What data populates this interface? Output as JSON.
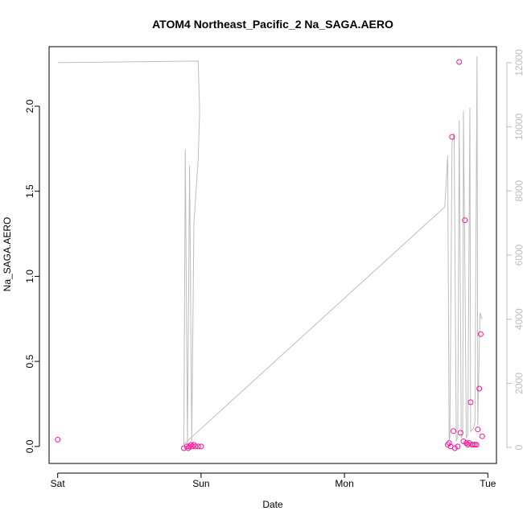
{
  "chart_data": {
    "type": "scatter",
    "title": "ATOM4 Northeast_Pacific_2 Na_SAGA.AERO",
    "xlabel": "Date",
    "ylabel": "Na_SAGA.AERO",
    "x_ticks": [
      {
        "label": "Sat",
        "value": 0
      },
      {
        "label": "Sun",
        "value": 1
      },
      {
        "label": "Mon",
        "value": 2
      },
      {
        "label": "Tue",
        "value": 3
      }
    ],
    "xlim": [
      -0.06,
      3.06
    ],
    "y_ticks": [
      0.0,
      0.5,
      1.0,
      1.5,
      2.0
    ],
    "y_tick_labels": [
      "0.0",
      "0.5",
      "1.0",
      "1.5",
      "2.0"
    ],
    "ylim": [
      -0.1,
      2.35
    ],
    "y2_ticks": [
      0,
      2000,
      4000,
      6000,
      8000,
      10000,
      12000
    ],
    "y2_tick_labels": [
      "0",
      "2000",
      "4000",
      "6000",
      "8000",
      "10000",
      "12000"
    ],
    "y2lim": [
      -500,
      12500
    ],
    "points_color": "#ff1493",
    "line_color": "#bdbdbd",
    "axis_color": "#000000",
    "y2_axis_color": "#bdbdbd",
    "series": [
      {
        "kind": "points",
        "axis": "left",
        "x": [
          0.0,
          0.88,
          0.9,
          0.91,
          0.92,
          0.93,
          0.94,
          0.95,
          0.96,
          0.98,
          1.0,
          2.72,
          2.73,
          2.74,
          2.75,
          2.76,
          2.77,
          2.79,
          2.8,
          2.81,
          2.83,
          2.84,
          2.85,
          2.86,
          2.87,
          2.88,
          2.89,
          2.9,
          2.91,
          2.92,
          2.93,
          2.94,
          2.95,
          2.96
        ],
        "y": [
          0.04,
          -0.01,
          0.0,
          -0.01,
          0.0,
          0.01,
          0.0,
          0.01,
          0.0,
          0.0,
          0.0,
          0.01,
          0.02,
          0.0,
          1.82,
          0.09,
          -0.01,
          0.0,
          2.26,
          0.08,
          0.03,
          1.33,
          0.02,
          0.01,
          0.02,
          0.26,
          0.01,
          0.01,
          0.01,
          0.01,
          0.1,
          0.34,
          0.66,
          0.06
        ]
      },
      {
        "kind": "line",
        "axis": "right",
        "x": [
          0.0,
          0.98,
          0.99,
          0.98,
          0.95,
          0.935,
          0.92,
          0.905,
          0.89,
          0.88,
          2.7,
          2.72,
          2.73,
          2.735,
          2.75,
          2.765,
          2.78,
          2.79,
          2.8,
          2.815,
          2.825,
          2.83,
          2.85,
          2.86,
          2.875,
          2.88,
          2.9,
          2.91,
          2.925,
          2.93,
          2.945,
          2.96
        ],
        "y": [
          12000,
          12050,
          10500,
          9000,
          7000,
          200,
          8800,
          100,
          9300,
          100,
          7500,
          9100,
          200,
          300,
          9500,
          9800,
          200,
          300,
          10200,
          300,
          400,
          10500,
          300,
          400,
          10600,
          500,
          600,
          800,
          12200,
          700,
          4200,
          4000
        ]
      }
    ]
  }
}
